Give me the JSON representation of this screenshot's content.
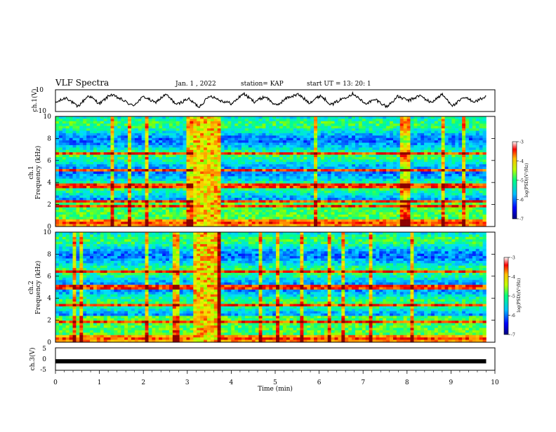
{
  "header": {
    "title": "VLF Spectra",
    "date": "Jan. 1 , 2022",
    "station": "station= KAP",
    "start": "start UT = 13: 20: 1"
  },
  "colors": {
    "waveform": "#000000",
    "colormap": [
      "#00007f",
      "#0000ff",
      "#00bfff",
      "#00ff7f",
      "#bfff00",
      "#ffbf00",
      "#ff0000",
      "#7f0000"
    ]
  },
  "chart_data": [
    {
      "type": "line",
      "panel": "ch1_waveform",
      "ylabel": "ch.1(V)",
      "ylim": [
        -10,
        10
      ],
      "yticks": [
        "10",
        "-10"
      ],
      "x_range_min": [
        0,
        10
      ],
      "description_values": "waveform oscillating roughly between -8 and 8 V over 0–9.8 min",
      "y_approx": [
        -2,
        3,
        -6,
        5,
        -3,
        6,
        1,
        -5,
        4,
        -2,
        6,
        -4,
        2,
        -6,
        5,
        0,
        -3,
        7,
        -1,
        4,
        -5,
        3,
        6,
        -2,
        5,
        -4,
        2,
        7,
        -3,
        1,
        -6,
        4,
        0,
        5,
        -2,
        6,
        -5,
        3,
        -1,
        4
      ]
    },
    {
      "type": "heatmap",
      "panel": "ch1_spectrogram",
      "ylabel": "ch.1\nFrequency (kHz)",
      "ylim": [
        0,
        10
      ],
      "yticks": [
        "0",
        "2",
        "4",
        "6",
        "8",
        "10"
      ],
      "xlim": [
        0,
        10
      ],
      "data_end_min": 9.8,
      "color_scale": {
        "label": "log(PSD)(V²/Hz)",
        "ticks": [
          "-3",
          "-4",
          "-5",
          "-6",
          "-7"
        ],
        "range": [
          -7,
          -3
        ]
      },
      "burst_interval_min": [
        3.1,
        3.8
      ],
      "banded_lines_khz": [
        0.3,
        1.8,
        2.2,
        3.7,
        5.1,
        6.6
      ]
    },
    {
      "type": "heatmap",
      "panel": "ch2_spectrogram",
      "ylabel": "ch.2\nFrequency (kHz)",
      "ylim": [
        0,
        10
      ],
      "yticks": [
        "0",
        "2",
        "4",
        "6",
        "8",
        "10"
      ],
      "xlim": [
        0,
        10
      ],
      "data_end_min": 9.8,
      "color_scale": {
        "label": "log(PSD)(V²/Hz)",
        "ticks": [
          "-3",
          "-4",
          "-5",
          "-6",
          "-7"
        ],
        "range": [
          -7,
          -3
        ]
      },
      "burst_interval_min": [
        3.1,
        3.8
      ],
      "banded_lines_khz": [
        0.3,
        1.9,
        3.4,
        5.0,
        6.5
      ]
    },
    {
      "type": "line",
      "panel": "ch3_waveform",
      "ylabel": "ch.3(V)",
      "ylim": [
        -5,
        5
      ],
      "yticks": [
        "5",
        "0",
        "-5"
      ],
      "xlim": [
        0,
        10
      ],
      "constant_value": -1,
      "xlabel": "Time (min)",
      "xticks": [
        "0",
        "1",
        "2",
        "3",
        "4",
        "5",
        "6",
        "7",
        "8",
        "9",
        "10"
      ]
    }
  ]
}
